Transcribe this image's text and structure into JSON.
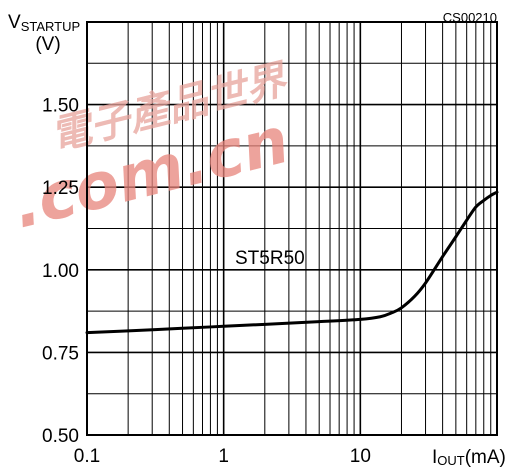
{
  "chart_data": {
    "type": "line",
    "code": "CS00210",
    "ylabel_main": "V",
    "ylabel_sub": "STARTUP",
    "ylabel_unit": "(V)",
    "xlabel_main": "I",
    "xlabel_sub": "OUT",
    "xlabel_unit": "(mA)",
    "x_scale": "log",
    "xlim": [
      0.1,
      100
    ],
    "ylim": [
      0.5,
      1.75
    ],
    "y_ticks": [
      0.5,
      0.75,
      1.0,
      1.25,
      1.5
    ],
    "y_tick_labels": [
      "0.50",
      "0.75",
      "1.00",
      "1.25",
      "1.50"
    ],
    "x_ticks": [
      0.1,
      1,
      10
    ],
    "x_tick_labels": [
      "0.1",
      "1",
      "10"
    ],
    "y_minor_step": 0.125,
    "grid": true,
    "series": [
      {
        "name": "ST5R50",
        "x": [
          0.1,
          0.2,
          0.5,
          1,
          2,
          5,
          10,
          14,
          17,
          20,
          25,
          30,
          40,
          50,
          60,
          70,
          80,
          90,
          100
        ],
        "y": [
          0.81,
          0.815,
          0.823,
          0.829,
          0.835,
          0.843,
          0.85,
          0.858,
          0.87,
          0.885,
          0.92,
          0.96,
          1.04,
          1.1,
          1.15,
          1.19,
          1.21,
          1.225,
          1.235
        ]
      }
    ]
  },
  "watermark": {
    "text": ".com.cn",
    "chars": "電子產品世界",
    "color": "#e8857c"
  }
}
